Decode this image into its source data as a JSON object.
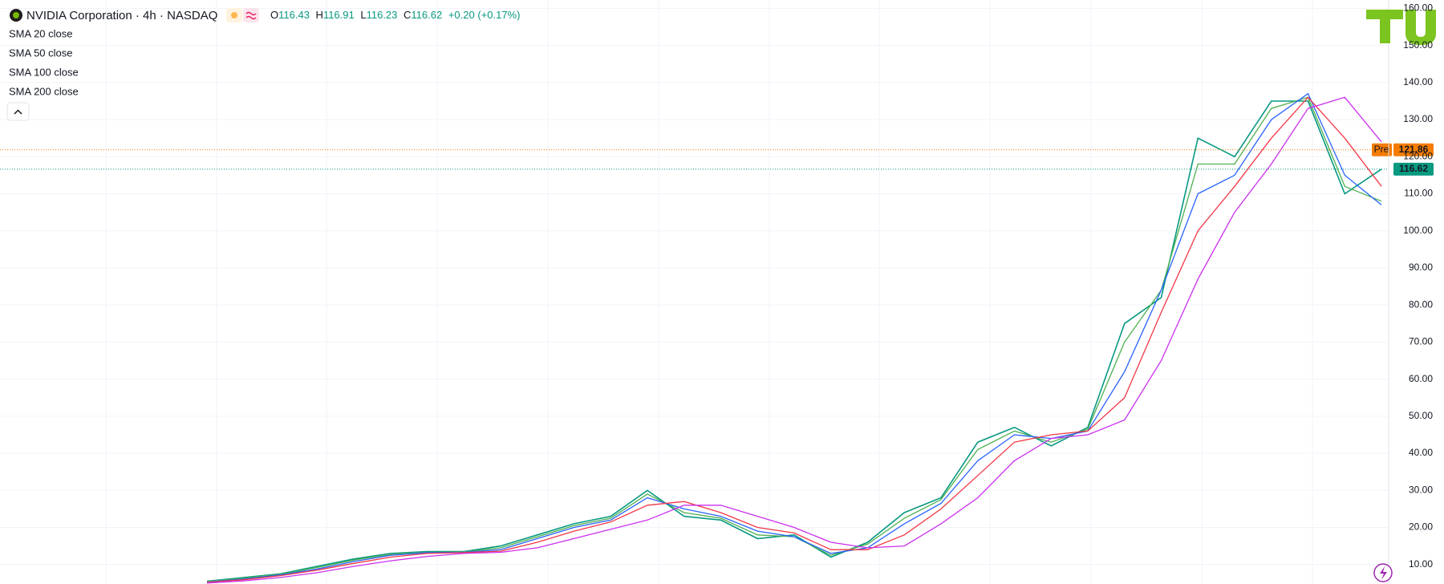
{
  "chart_data": {
    "type": "line",
    "title": "NVIDIA Corporation · 4h · NASDAQ",
    "ohlc": [
      {
        "label": "O",
        "value": 116.43
      },
      {
        "label": "H",
        "value": 116.91
      },
      {
        "label": "L",
        "value": 116.23
      },
      {
        "label": "C",
        "value": 116.62
      }
    ],
    "change": "+0.20 (+0.17%)",
    "categories": [
      null,
      null,
      null,
      null,
      null,
      null,
      null,
      null,
      null,
      null,
      null,
      null,
      null,
      null,
      null,
      null,
      null,
      null,
      null,
      null,
      null,
      null,
      null,
      null,
      null,
      null,
      null,
      null,
      null,
      null,
      null,
      null,
      null
    ],
    "series": [
      {
        "color": "#089981",
        "values": [
          5.5,
          6.5,
          7.5,
          9.5,
          11.5,
          13,
          13.5,
          13.5,
          15,
          18,
          21,
          23,
          30,
          23,
          22,
          17,
          18,
          12,
          16,
          24,
          28,
          43,
          47,
          42,
          47,
          75,
          82,
          125,
          120,
          135,
          135,
          110,
          116.62
        ]
      },
      {
        "name": "SMA 20 close",
        "color": "#4caf50",
        "values": [
          5.4,
          6.3,
          7.4,
          9.2,
          11.2,
          12.8,
          13.3,
          13.4,
          14.5,
          17.5,
          20.5,
          22.5,
          29,
          24,
          22.5,
          18,
          17.5,
          12.5,
          15.5,
          22.5,
          27.5,
          41,
          46,
          43,
          46.5,
          70,
          84,
          118,
          118,
          133,
          136,
          112,
          108
        ]
      },
      {
        "name": "SMA 50 close",
        "color": "#2962ff",
        "values": [
          5.3,
          6.1,
          7.2,
          8.8,
          10.8,
          12.5,
          13.2,
          13.3,
          14,
          17,
          20,
          22,
          28,
          25,
          23,
          19,
          17.5,
          13,
          14.5,
          21,
          26.5,
          38,
          45,
          44,
          46,
          62,
          84,
          110,
          115,
          130,
          137,
          115,
          107
        ]
      },
      {
        "name": "SMA 100 close",
        "color": "#f23645",
        "values": [
          5.2,
          5.9,
          7,
          8.5,
          10.3,
          12,
          13,
          13.2,
          13.6,
          16,
          19,
          21.5,
          26,
          27,
          24,
          20,
          18.5,
          14,
          14,
          18,
          25,
          34,
          43,
          45,
          46,
          55,
          78,
          100,
          112,
          125,
          136,
          125,
          112
        ]
      },
      {
        "name": "SMA 200 close",
        "color": "#cc2fef",
        "values": [
          5,
          5.6,
          6.5,
          7.8,
          9.5,
          11,
          12.2,
          13,
          13.3,
          14.5,
          17,
          19.5,
          22,
          26,
          26,
          23,
          20,
          16,
          14.5,
          15,
          21,
          28,
          38,
          44,
          45,
          49,
          65,
          87,
          105,
          118,
          133,
          136,
          124
        ]
      }
    ],
    "ylim": [
      4.75,
      162.25
    ],
    "yticks": [
      {
        "value": 10,
        "label": "10.00"
      },
      {
        "value": 20,
        "label": "20.00"
      },
      {
        "value": 30,
        "label": "30.00"
      },
      {
        "value": 40,
        "label": "40.00"
      },
      {
        "value": 50,
        "label": "50.00"
      },
      {
        "value": 60,
        "label": "60.00"
      },
      {
        "value": 70,
        "label": "70.00"
      },
      {
        "value": 80,
        "label": "80.00"
      },
      {
        "value": 90,
        "label": "90.00"
      },
      {
        "value": 100,
        "label": "100.00"
      },
      {
        "value": 110,
        "label": "110.00"
      },
      {
        "value": 120,
        "label": "120.00"
      },
      {
        "value": 130,
        "label": "130.00"
      },
      {
        "value": 140,
        "label": "140.00"
      },
      {
        "value": 150,
        "label": "150.00"
      },
      {
        "value": 160,
        "label": "160.00"
      }
    ],
    "grid": true,
    "price_labels": [
      {
        "label": "Pre",
        "value": 121.86,
        "color": "#f57c00"
      },
      {
        "value": 116.62,
        "color": "#089981"
      }
    ]
  }
}
